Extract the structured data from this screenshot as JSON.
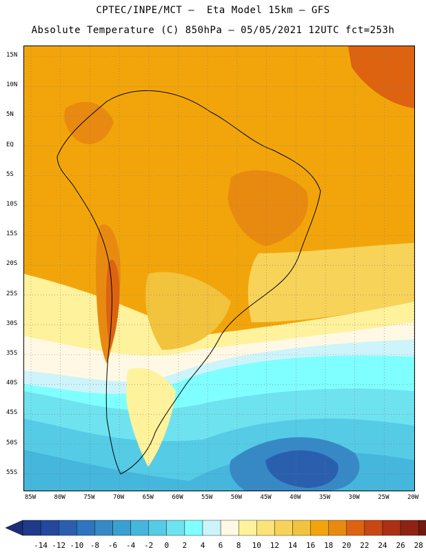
{
  "title": {
    "line1": "CPTEC/INPE/MCT —  Eta Model 15km — GFS",
    "line2": "Absolute Temperature (C) 850hPa — 05/05/2021 12UTC fct=253h"
  },
  "lat_labels": [
    "15N",
    "10N",
    "5N",
    "EQ",
    "5S",
    "10S",
    "15S",
    "20S",
    "25S",
    "30S",
    "35S",
    "40S",
    "45S",
    "50S",
    "55S"
  ],
  "lon_labels": [
    "85W",
    "80W",
    "75W",
    "70W",
    "65W",
    "60W",
    "55W",
    "50W",
    "45W",
    "40W",
    "35W",
    "30W",
    "25W",
    "20W"
  ],
  "colorbar": {
    "labels": [
      "-14",
      "-12",
      "-10",
      "-8",
      "-6",
      "-4",
      "-2",
      "0",
      "2",
      "4",
      "6",
      "8",
      "10",
      "12",
      "14",
      "16",
      "18",
      "20",
      "22",
      "24",
      "26",
      "28"
    ],
    "colors": [
      "#1f3a8a",
      "#24489c",
      "#2a5fae",
      "#2f74bf",
      "#3789c6",
      "#3aa0cf",
      "#45b6dc",
      "#55cbe6",
      "#6fe2ef",
      "#7fffff",
      "#cdf4fb",
      "#fff8e4",
      "#fff29c",
      "#fbe37a",
      "#f7d35a",
      "#f2c33d",
      "#f2a50b",
      "#e98a10",
      "#dd6310",
      "#c94714",
      "#ab3016",
      "#8e2314",
      "#6f1a12"
    ],
    "low_color": "#1a2f78",
    "high_color": "#7a0a28"
  },
  "palette": {
    "t_deep_blue": "#2a5fae",
    "t_blue": "#3789c6",
    "t_mid_blue": "#45b6dc",
    "t_cyan": "#55cbe6",
    "t_light_cyan": "#6fe2ef",
    "t_aqua": "#7fffff",
    "t_pale_blue": "#cdf4fb",
    "t_cream": "#fff8e4",
    "t_pale_yellow": "#fff29c",
    "t_yellow": "#f7d35a",
    "t_gold": "#f2c33d",
    "t_orange": "#f2a50b",
    "t_dark_orange": "#e98a10",
    "t_red_orange": "#dd6310",
    "t_brown": "#ab3016"
  }
}
